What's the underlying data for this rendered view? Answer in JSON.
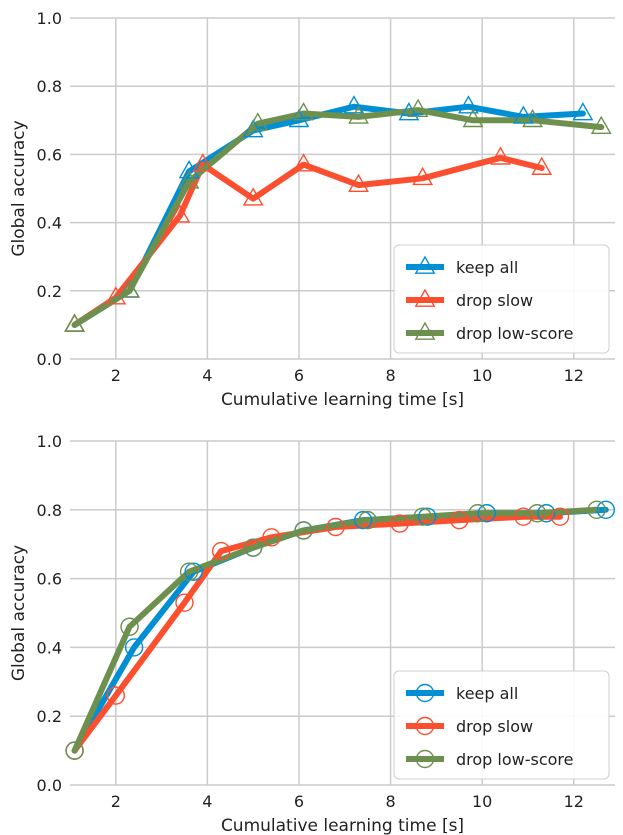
{
  "chart_data": [
    {
      "type": "line",
      "marker": "triangle",
      "title": "",
      "xlabel": "Cumulative learning time [s]",
      "ylabel": "Global accuracy",
      "xlim": [
        1.0,
        12.9
      ],
      "ylim": [
        0.0,
        1.0
      ],
      "xticks": [
        2,
        4,
        6,
        8,
        10,
        12
      ],
      "yticks": [
        0.0,
        0.2,
        0.4,
        0.6,
        0.8,
        1.0
      ],
      "grid": true,
      "legend_position": "lower-right",
      "series": [
        {
          "name": "keep all",
          "color": "#008fd5",
          "x": [
            1.1,
            2.3,
            3.6,
            5.0,
            6.0,
            7.2,
            8.4,
            9.7,
            10.9,
            12.2
          ],
          "y": [
            0.1,
            0.2,
            0.55,
            0.67,
            0.7,
            0.74,
            0.72,
            0.74,
            0.71,
            0.72
          ]
        },
        {
          "name": "drop slow",
          "color": "#fc4f30",
          "x": [
            1.1,
            2.0,
            3.4,
            3.9,
            5.0,
            6.1,
            7.3,
            8.7,
            10.4,
            11.3
          ],
          "y": [
            0.1,
            0.18,
            0.42,
            0.57,
            0.47,
            0.57,
            0.51,
            0.53,
            0.59,
            0.56
          ]
        },
        {
          "name": "drop low-score",
          "color": "#6d904f",
          "x": [
            1.1,
            2.3,
            3.6,
            5.1,
            6.1,
            7.3,
            8.6,
            9.8,
            11.1,
            12.6
          ],
          "y": [
            0.1,
            0.2,
            0.52,
            0.69,
            0.72,
            0.71,
            0.73,
            0.7,
            0.7,
            0.68
          ]
        }
      ]
    },
    {
      "type": "line",
      "marker": "circle",
      "title": "",
      "xlabel": "Cumulative learning time [s]",
      "ylabel": "Global accuracy",
      "xlim": [
        1.0,
        12.9
      ],
      "ylim": [
        0.0,
        1.0
      ],
      "xticks": [
        2,
        4,
        6,
        8,
        10,
        12
      ],
      "yticks": [
        0.0,
        0.2,
        0.4,
        0.6,
        0.8,
        1.0
      ],
      "grid": true,
      "legend_position": "lower-right",
      "series": [
        {
          "name": "keep all",
          "color": "#008fd5",
          "x": [
            1.1,
            2.4,
            3.7,
            5.0,
            6.1,
            7.4,
            8.8,
            10.1,
            11.4,
            12.7
          ],
          "y": [
            0.1,
            0.4,
            0.62,
            0.69,
            0.74,
            0.77,
            0.78,
            0.79,
            0.79,
            0.8
          ]
        },
        {
          "name": "drop slow",
          "color": "#fc4f30",
          "x": [
            1.1,
            2.0,
            3.5,
            4.3,
            5.4,
            6.8,
            8.2,
            9.5,
            10.9,
            11.7
          ],
          "y": [
            0.1,
            0.26,
            0.53,
            0.68,
            0.72,
            0.75,
            0.76,
            0.77,
            0.78,
            0.78
          ]
        },
        {
          "name": "drop low-score",
          "color": "#6d904f",
          "x": [
            1.1,
            2.3,
            3.6,
            5.0,
            6.1,
            7.5,
            8.7,
            9.9,
            11.2,
            12.5
          ],
          "y": [
            0.1,
            0.46,
            0.62,
            0.69,
            0.74,
            0.77,
            0.78,
            0.79,
            0.79,
            0.8
          ]
        }
      ]
    }
  ]
}
